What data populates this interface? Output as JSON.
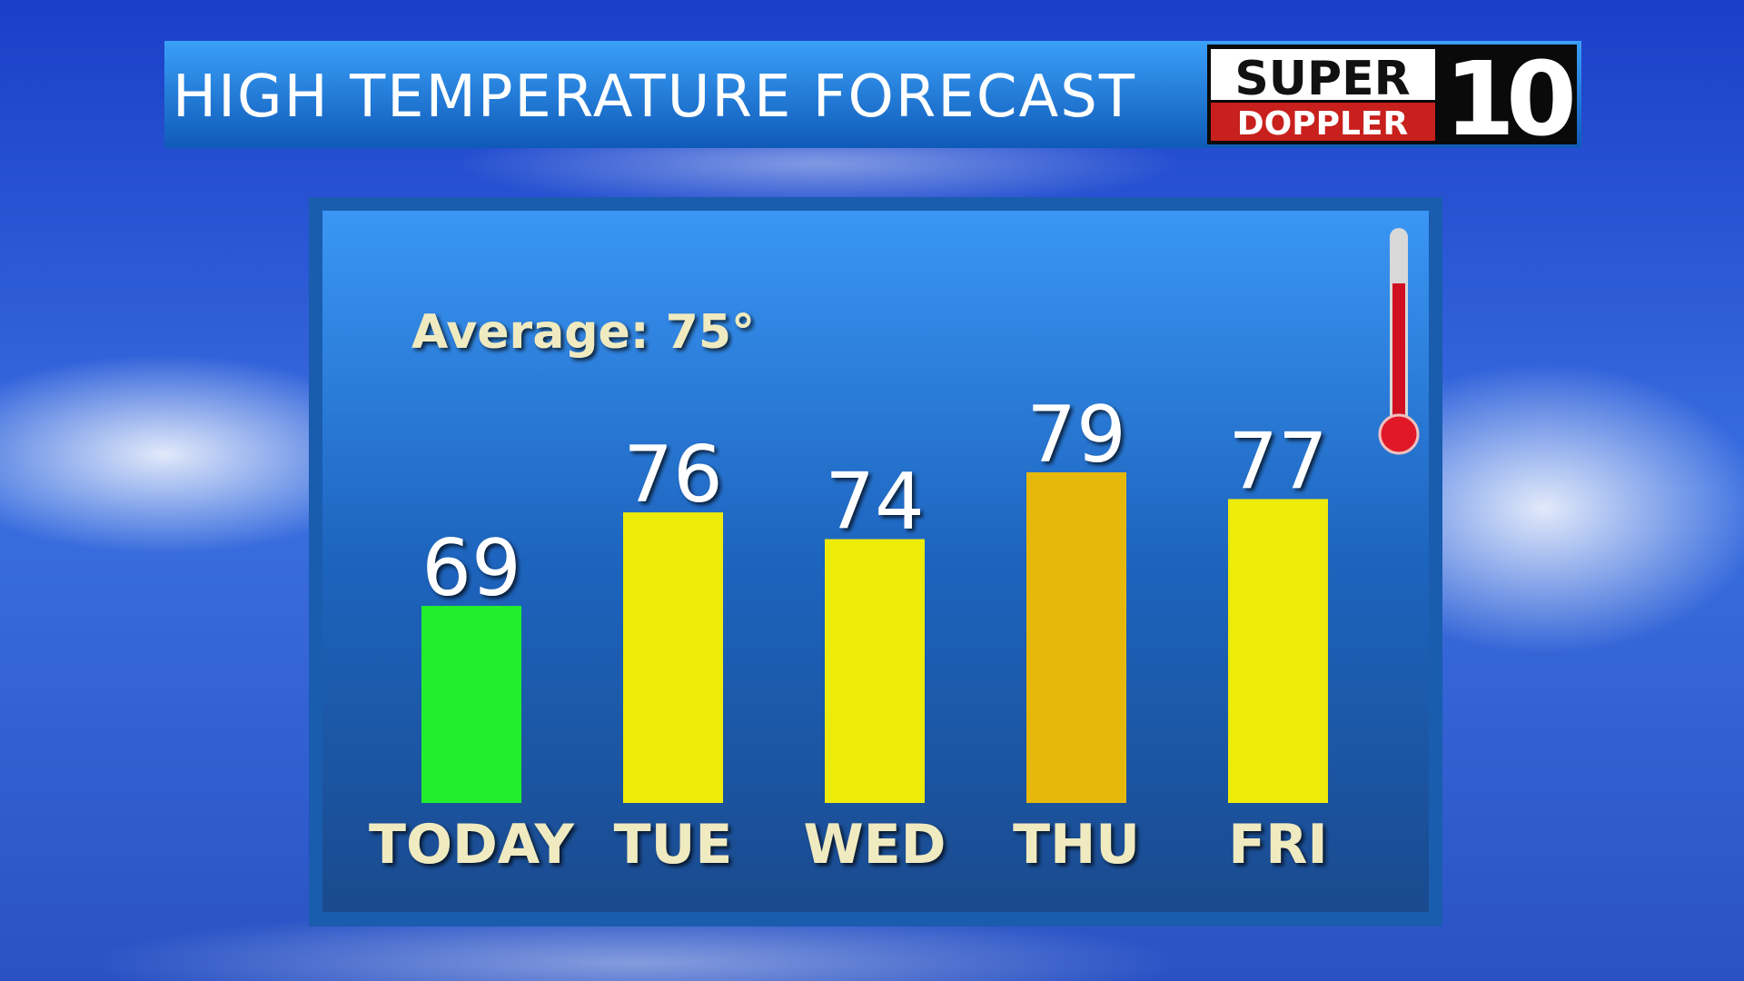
{
  "chart_data": {
    "type": "bar",
    "title": "HIGH TEMPERATURE FORECAST",
    "logo": {
      "top": "SUPER",
      "bottom": "DOPPLER",
      "number": "10"
    },
    "annotation": "Average: 75°",
    "categories": [
      "TODAY",
      "TUE",
      "WED",
      "THU",
      "FRI"
    ],
    "values": [
      69,
      76,
      74,
      79,
      77
    ],
    "colors": [
      "#22ee2e",
      "#eceb0a",
      "#eceb0a",
      "#e6b80c",
      "#eceb0a"
    ]
  }
}
